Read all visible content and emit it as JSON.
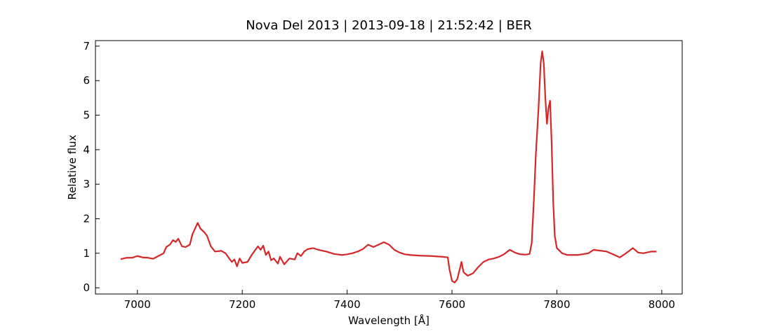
{
  "chart_data": {
    "type": "line",
    "title": "Nova Del 2013 | 2013-09-18 | 21:52:42 | BER",
    "x_label": "Wavelength [Å]",
    "y_label": "Relative flux",
    "xlim": [
      6920,
      8039
    ],
    "ylim": [
      -0.18,
      7.16
    ],
    "xticks": [
      7000,
      7200,
      7400,
      7600,
      7800,
      8000
    ],
    "yticks": [
      0,
      1,
      2,
      3,
      4,
      5,
      6,
      7
    ],
    "grid": false,
    "x": [
      6968,
      6980,
      6990,
      7000,
      7010,
      7020,
      7030,
      7040,
      7050,
      7055,
      7062,
      7068,
      7073,
      7078,
      7085,
      7092,
      7100,
      7105,
      7112,
      7115,
      7120,
      7128,
      7133,
      7140,
      7148,
      7160,
      7168,
      7175,
      7180,
      7185,
      7190,
      7195,
      7200,
      7210,
      7218,
      7225,
      7230,
      7235,
      7240,
      7245,
      7250,
      7255,
      7260,
      7268,
      7272,
      7280,
      7290,
      7300,
      7305,
      7312,
      7318,
      7325,
      7335,
      7345,
      7360,
      7375,
      7390,
      7400,
      7410,
      7420,
      7430,
      7440,
      7450,
      7460,
      7470,
      7480,
      7490,
      7500,
      7510,
      7520,
      7540,
      7560,
      7580,
      7592,
      7595,
      7600,
      7605,
      7610,
      7615,
      7618,
      7622,
      7630,
      7640,
      7650,
      7660,
      7670,
      7680,
      7690,
      7700,
      7710,
      7720,
      7730,
      7740,
      7748,
      7752,
      7756,
      7760,
      7765,
      7769,
      7772,
      7775,
      7778,
      7781,
      7784,
      7787,
      7790,
      7793,
      7796,
      7800,
      7810,
      7820,
      7840,
      7860,
      7870,
      7880,
      7895,
      7910,
      7920,
      7930,
      7945,
      7955,
      7965,
      7980,
      7990
    ],
    "series": [
      {
        "name": "Nova Del 2013",
        "color": "#d62728",
        "values": [
          0.83,
          0.87,
          0.87,
          0.92,
          0.88,
          0.87,
          0.84,
          0.92,
          1.0,
          1.18,
          1.25,
          1.38,
          1.33,
          1.42,
          1.2,
          1.18,
          1.25,
          1.55,
          1.78,
          1.88,
          1.72,
          1.6,
          1.5,
          1.2,
          1.05,
          1.07,
          1.0,
          0.85,
          0.75,
          0.82,
          0.62,
          0.85,
          0.72,
          0.75,
          0.95,
          1.1,
          1.2,
          1.1,
          1.22,
          0.95,
          1.05,
          0.8,
          0.85,
          0.7,
          0.9,
          0.68,
          0.85,
          0.82,
          1.0,
          0.92,
          1.05,
          1.12,
          1.15,
          1.1,
          1.05,
          0.98,
          0.95,
          0.97,
          1.0,
          1.05,
          1.12,
          1.25,
          1.18,
          1.25,
          1.32,
          1.25,
          1.1,
          1.02,
          0.97,
          0.95,
          0.93,
          0.92,
          0.9,
          0.88,
          0.55,
          0.2,
          0.15,
          0.25,
          0.55,
          0.75,
          0.45,
          0.35,
          0.42,
          0.6,
          0.75,
          0.82,
          0.85,
          0.9,
          0.98,
          1.1,
          1.02,
          0.97,
          0.96,
          0.98,
          1.3,
          2.5,
          3.9,
          5.2,
          6.5,
          6.85,
          6.5,
          5.5,
          4.75,
          5.2,
          5.42,
          4.2,
          2.5,
          1.5,
          1.15,
          1.0,
          0.95,
          0.95,
          1.0,
          1.1,
          1.08,
          1.05,
          0.95,
          0.88,
          0.98,
          1.15,
          1.02,
          1.0,
          1.05,
          1.05
        ]
      }
    ]
  }
}
